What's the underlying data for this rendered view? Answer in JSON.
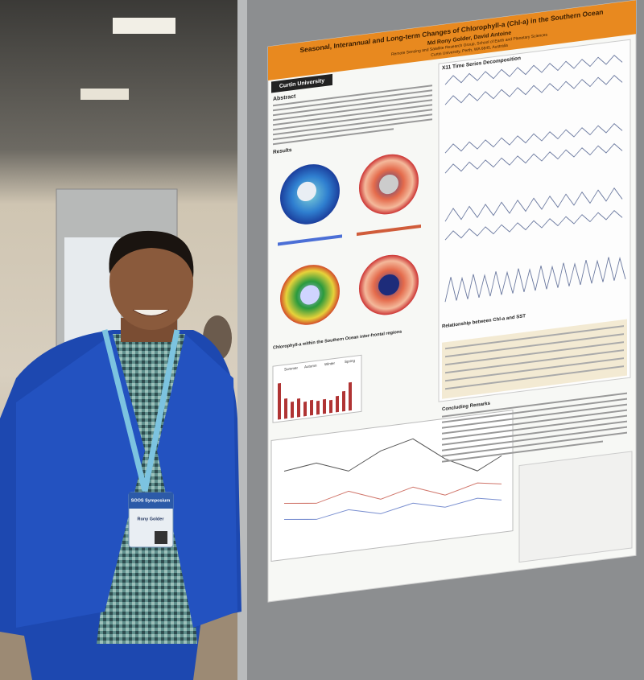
{
  "poster": {
    "title": "Seasonal, Interannual and Long-term Changes of Chlorophyll-a (Chl-a) in the Southern Ocean",
    "authors": "Md Rony Golder, David Antoine",
    "affiliation": [
      "Remote Sensing and Satellite Research Group, School of Earth and Planetary Sciences",
      "Curtin University, Perth, WA 6845, Australia"
    ],
    "logo": "Curtin University",
    "sections": [
      "Abstract",
      "Results",
      "Chlorophyll-a within the Southern Ocean inter-frontal regions",
      "X11 Time Series Decomposition",
      "Relationship between Chl-a and SST",
      "Concluding Remarks"
    ],
    "seasons": [
      "Summer",
      "Autumn",
      "Winter",
      "Spring"
    ]
  },
  "badge": {
    "event": "SOOS Symposium",
    "name": "Rony Golder"
  }
}
